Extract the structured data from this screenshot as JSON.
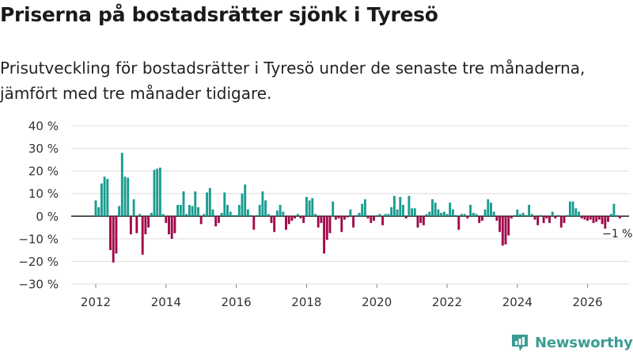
{
  "title": "Priserna på bostadsrätter sjönk i Tyresö",
  "subtitle": "Prisutveckling för bostadsrätter i Tyresö under de senaste tre månaderna, jämfört med tre månader tidigare.",
  "brand": {
    "name": "Newsworthy",
    "icon": "newsworthy-logo-icon"
  },
  "colors": {
    "positive": "#1a9c91",
    "negative": "#a1084a",
    "grid": "#dddddd",
    "zero": "#222222",
    "brand": "#3b9c93"
  },
  "chart_data": {
    "type": "bar",
    "title": "Priserna på bostadsrätter sjönk i Tyresö",
    "xlabel": "",
    "ylabel": "",
    "ylim": [
      -30,
      40
    ],
    "yticks": [
      40,
      30,
      20,
      10,
      0,
      -10,
      -20,
      -30
    ],
    "ytick_labels": [
      "40 %",
      "30 %",
      "20 %",
      "10 %",
      "0 %",
      "−10 %",
      "−20 %",
      "−30 %"
    ],
    "xlim": [
      2011.5,
      2026.75
    ],
    "xticks": [
      2012,
      2014,
      2016,
      2018,
      2020,
      2022,
      2024,
      2026
    ],
    "xtick_labels": [
      "2012",
      "2014",
      "2016",
      "2018",
      "2020",
      "2022",
      "2024",
      "2026"
    ],
    "start": "2012-01",
    "frequency": "monthly",
    "values": [
      7,
      4,
      14.5,
      17.5,
      16.5,
      -15,
      -20.5,
      -16.5,
      4.5,
      28,
      17.5,
      17,
      -8,
      7.5,
      -7.5,
      1,
      -17,
      -8,
      -5,
      1.5,
      20.5,
      21,
      21.5,
      1,
      -3,
      -8,
      -10,
      -7.5,
      5,
      5,
      11,
      1,
      5,
      4.5,
      11,
      4,
      -3.5,
      1,
      10.5,
      12.5,
      3,
      -4.5,
      -3,
      1.5,
      10.5,
      5,
      2,
      0.5,
      0.5,
      5,
      10,
      14,
      3,
      0.5,
      -6,
      0.5,
      5,
      11,
      7,
      1,
      -3,
      -7,
      2.5,
      5,
      2,
      -6,
      -3.5,
      -2,
      -1,
      1,
      -1,
      -3,
      8.5,
      7,
      8,
      1,
      -5,
      -3,
      -16.5,
      -10.5,
      -7.5,
      6.5,
      -1.5,
      -1,
      -7,
      -1.5,
      -0.5,
      3,
      -5,
      0.5,
      1.5,
      5.5,
      7.5,
      -1,
      -3,
      -2,
      0.5,
      1,
      -4,
      1,
      1,
      4,
      9,
      3,
      8.5,
      5,
      -1,
      9,
      3.5,
      3.5,
      -5,
      -3,
      -4,
      1,
      2,
      7.5,
      6,
      3,
      1.5,
      2,
      1,
      6,
      3,
      0.5,
      -6,
      1,
      1,
      -1,
      5,
      1.5,
      1,
      -3,
      -2,
      3,
      7.5,
      6,
      2,
      -2,
      -7,
      -13,
      -12.5,
      -8.5,
      -1,
      0.5,
      3,
      1,
      1.5,
      0.5,
      5,
      1,
      -1.5,
      -4,
      0.5,
      -3,
      -1,
      -3,
      2,
      -1,
      0.5,
      -5,
      -3,
      0.5,
      6.5,
      6.5,
      3.5,
      2,
      -1,
      -1.5,
      -2,
      -1.5,
      -3,
      -2.5,
      -1.5,
      -3.5,
      -5.5,
      -2.5,
      1,
      5.5,
      0.5,
      -1
    ],
    "annotations": [
      {
        "label": "−1 %",
        "index": 179
      }
    ]
  }
}
